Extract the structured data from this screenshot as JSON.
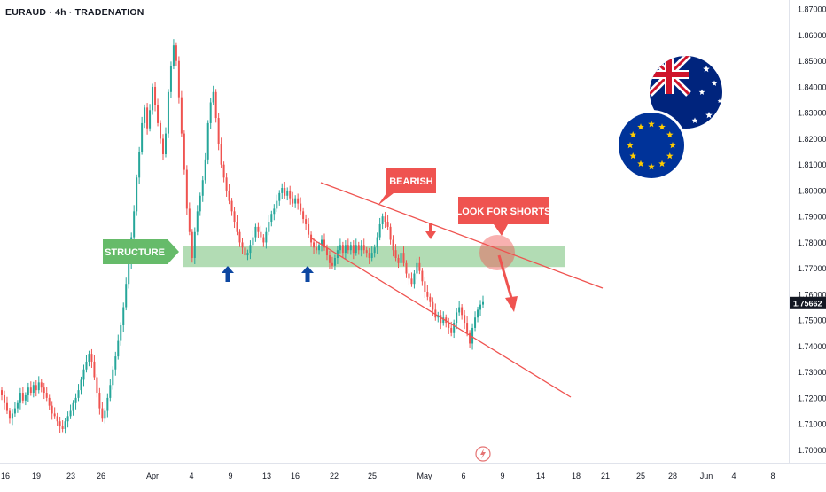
{
  "header": {
    "symbol": "EURAUD",
    "timeframe": "4h",
    "source": "TRADENATION"
  },
  "colors": {
    "bull": "#26a69a",
    "bear": "#ef5350",
    "structure_zone": "#a5d6a7",
    "structure_label": "#66bb6a",
    "annotation_red": "#ef5350",
    "arrow_blue": "#0d47a1",
    "price_tag": "#131722"
  },
  "chart_data": {
    "type": "candlestick",
    "symbol": "EURAUD",
    "interval": "4h",
    "ylim": [
      1.695,
      1.8735
    ],
    "y_ticks": [
      "1.70000",
      "1.71000",
      "1.72000",
      "1.73000",
      "1.74000",
      "1.75000",
      "1.76000",
      "1.77000",
      "1.78000",
      "1.79000",
      "1.80000",
      "1.81000",
      "1.82000",
      "1.83000",
      "1.84000",
      "1.85000",
      "1.86000",
      "1.87000"
    ],
    "x_ticks": [
      "16",
      "19",
      "23",
      "26",
      "Apr",
      "4",
      "9",
      "13",
      "16",
      "22",
      "25",
      "May",
      "6",
      "9",
      "14",
      "18",
      "21",
      "25",
      "28",
      "Jun",
      "4",
      "8"
    ],
    "last_price": "1.75662",
    "series": [
      {
        "type": "close_path",
        "values": [
          1.721,
          1.718,
          1.715,
          1.712,
          1.714,
          1.716,
          1.718,
          1.722,
          1.719,
          1.721,
          1.724,
          1.722,
          1.725,
          1.723,
          1.726,
          1.724,
          1.722,
          1.72,
          1.717,
          1.714,
          1.713,
          1.711,
          1.709,
          1.708,
          1.711,
          1.713,
          1.715,
          1.718,
          1.72,
          1.723,
          1.727,
          1.731,
          1.734,
          1.737,
          1.734,
          1.728,
          1.722,
          1.716,
          1.712,
          1.715,
          1.72,
          1.725,
          1.731,
          1.736,
          1.742,
          1.748,
          1.755,
          1.764,
          1.772,
          1.782,
          1.792,
          1.805,
          1.815,
          1.826,
          1.832,
          1.824,
          1.831,
          1.84,
          1.833,
          1.826,
          1.82,
          1.814,
          1.822,
          1.838,
          1.848,
          1.856,
          1.85,
          1.836,
          1.822,
          1.808,
          1.793,
          1.784,
          1.774,
          1.784,
          1.792,
          1.798,
          1.804,
          1.812,
          1.826,
          1.834,
          1.838,
          1.828,
          1.818,
          1.81,
          1.805,
          1.8,
          1.796,
          1.792,
          1.788,
          1.784,
          1.78,
          1.778,
          1.775,
          1.776,
          1.779,
          1.782,
          1.786,
          1.784,
          1.782,
          1.78,
          1.784,
          1.788,
          1.791,
          1.793,
          1.796,
          1.799,
          1.801,
          1.798,
          1.8,
          1.797,
          1.795,
          1.797,
          1.795,
          1.792,
          1.789,
          1.787,
          1.783,
          1.78,
          1.778,
          1.777,
          1.779,
          1.781,
          1.778,
          1.775,
          1.772,
          1.771,
          1.774,
          1.777,
          1.779,
          1.776,
          1.779,
          1.777,
          1.779,
          1.776,
          1.779,
          1.777,
          1.779,
          1.777,
          1.776,
          1.774,
          1.776,
          1.778,
          1.782,
          1.787,
          1.79,
          1.788,
          1.786,
          1.781,
          1.777,
          1.774,
          1.772,
          1.776,
          1.772,
          1.768,
          1.766,
          1.764,
          1.768,
          1.772,
          1.769,
          1.765,
          1.761,
          1.759,
          1.757,
          1.754,
          1.751,
          1.752,
          1.749,
          1.751,
          1.749,
          1.747,
          1.745,
          1.749,
          1.753,
          1.755,
          1.752,
          1.749,
          1.745,
          1.741,
          1.747,
          1.751,
          1.754,
          1.756,
          1.757
        ]
      }
    ]
  },
  "annotations": {
    "structure_label": "STRUCTURE",
    "bearish_label": "BEARISH",
    "shorts_label": "LOOK FOR SHORTS"
  },
  "flags": {
    "back": "australia-flag-icon",
    "front": "eu-flag-icon"
  }
}
